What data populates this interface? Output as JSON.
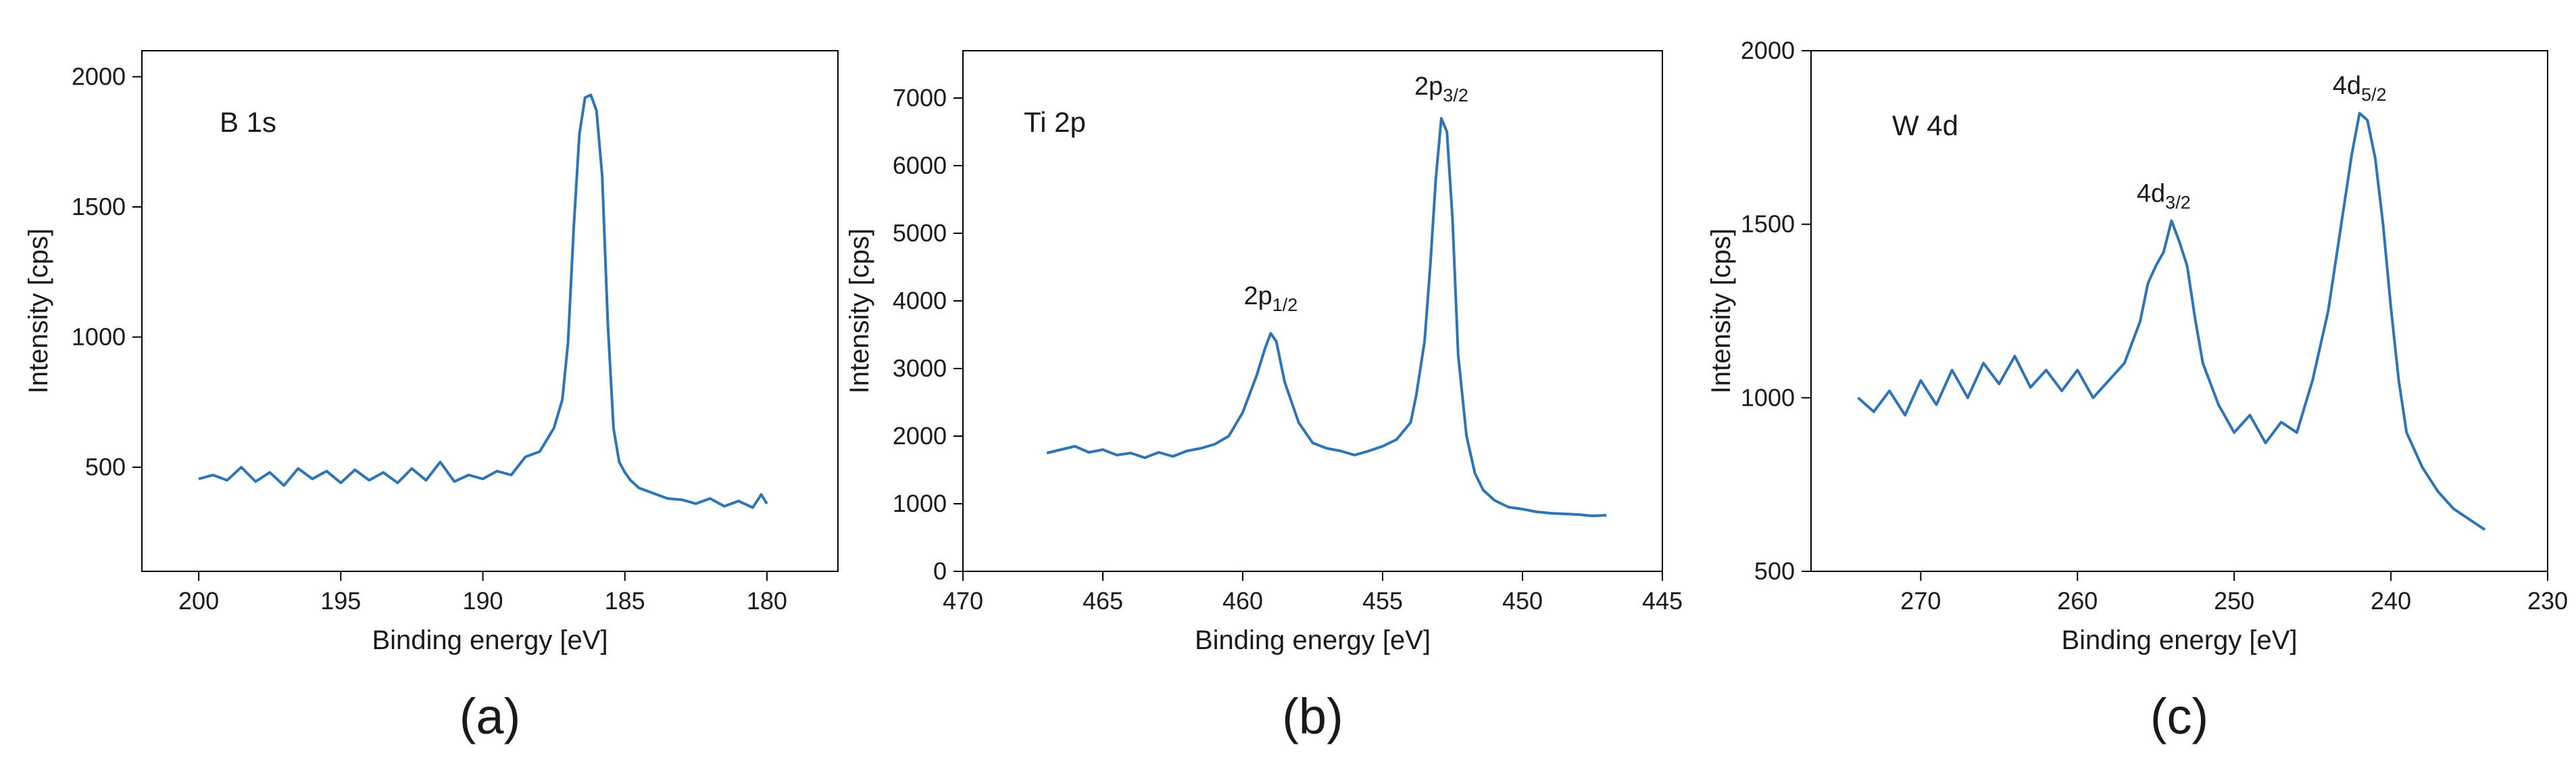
{
  "colors": {
    "line": "#2e75b6",
    "axis": "#000000",
    "text": "#1a1a1a"
  },
  "chart_data": [
    {
      "type": "line",
      "panel_label": "B 1s",
      "caption": "(a)",
      "xlabel": "Binding energy [eV]",
      "ylabel": "Intensity [cps]",
      "xlim": [
        202,
        177.5
      ],
      "ylim": [
        100,
        2100
      ],
      "x_ticks": [
        200,
        195,
        190,
        185,
        180
      ],
      "y_ticks": [
        500,
        1000,
        1500,
        2000
      ],
      "annotations": [],
      "series": [
        {
          "name": "B 1s",
          "x": [
            200.0,
            199.5,
            199.0,
            198.5,
            198.0,
            197.5,
            197.0,
            196.5,
            196.0,
            195.5,
            195.0,
            194.5,
            194.0,
            193.5,
            193.0,
            192.5,
            192.0,
            191.5,
            191.0,
            190.5,
            190.0,
            189.5,
            189.0,
            188.5,
            188.0,
            187.5,
            187.2,
            187.0,
            186.8,
            186.6,
            186.4,
            186.2,
            186.0,
            185.8,
            185.6,
            185.4,
            185.2,
            185.0,
            184.8,
            184.5,
            184.0,
            183.5,
            183.0,
            182.5,
            182.0,
            181.5,
            181.0,
            180.5,
            180.2,
            180.0
          ],
          "values": [
            455,
            470,
            450,
            500,
            445,
            480,
            430,
            495,
            455,
            485,
            440,
            490,
            450,
            480,
            440,
            495,
            450,
            520,
            445,
            470,
            455,
            485,
            470,
            540,
            560,
            650,
            760,
            980,
            1420,
            1780,
            1920,
            1930,
            1870,
            1620,
            1050,
            650,
            520,
            480,
            450,
            420,
            400,
            380,
            375,
            360,
            380,
            350,
            370,
            345,
            395,
            360
          ]
        }
      ]
    },
    {
      "type": "line",
      "panel_label": "Ti 2p",
      "caption": "(b)",
      "xlabel": "Binding energy [eV]",
      "ylabel": "Intensity [cps]",
      "xlim": [
        470,
        445
      ],
      "ylim": [
        0,
        7700
      ],
      "x_ticks": [
        470,
        465,
        460,
        455,
        450,
        445
      ],
      "y_ticks": [
        0,
        1000,
        2000,
        3000,
        4000,
        5000,
        6000,
        7000
      ],
      "annotations": [
        {
          "x": 459.0,
          "y": 3950,
          "main": "2p",
          "sub": "1/2"
        },
        {
          "x": 452.9,
          "y": 7050,
          "main": "2p",
          "sub": "3/2"
        }
      ],
      "series": [
        {
          "name": "Ti 2p",
          "x": [
            467.0,
            466.5,
            466.0,
            465.5,
            465.0,
            464.5,
            464.0,
            463.5,
            463.0,
            462.5,
            462.0,
            461.5,
            461.0,
            460.5,
            460.0,
            459.5,
            459.2,
            459.0,
            458.8,
            458.5,
            458.0,
            457.5,
            457.0,
            456.5,
            456.0,
            455.5,
            455.0,
            454.5,
            454.0,
            453.8,
            453.5,
            453.3,
            453.1,
            452.9,
            452.7,
            452.5,
            452.3,
            452.0,
            451.7,
            451.4,
            451.0,
            450.5,
            450.0,
            449.5,
            449.0,
            448.5,
            448.0,
            447.5,
            447.0
          ],
          "values": [
            1750,
            1800,
            1850,
            1760,
            1800,
            1720,
            1750,
            1680,
            1760,
            1700,
            1780,
            1820,
            1880,
            2000,
            2350,
            2900,
            3300,
            3520,
            3400,
            2800,
            2200,
            1900,
            1820,
            1780,
            1720,
            1780,
            1850,
            1950,
            2200,
            2600,
            3400,
            4500,
            5800,
            6700,
            6500,
            5200,
            3200,
            2000,
            1450,
            1200,
            1050,
            950,
            920,
            880,
            860,
            850,
            840,
            820,
            830
          ]
        }
      ]
    },
    {
      "type": "line",
      "panel_label": "W 4d",
      "caption": "(c)",
      "xlabel": "Binding energy [eV]",
      "ylabel": "Intensity [cps]",
      "xlim": [
        277,
        230
      ],
      "ylim": [
        500,
        2000
      ],
      "x_ticks": [
        270,
        260,
        250,
        240,
        230
      ],
      "y_ticks": [
        500,
        1000,
        1500,
        2000
      ],
      "annotations": [
        {
          "x": 254.5,
          "y": 1565,
          "main": "4d",
          "sub": "3/2"
        },
        {
          "x": 242.0,
          "y": 1875,
          "main": "4d",
          "sub": "5/2"
        }
      ],
      "series": [
        {
          "name": "W 4d",
          "x": [
            274.0,
            273.0,
            272.0,
            271.0,
            270.0,
            269.0,
            268.0,
            267.0,
            266.0,
            265.0,
            264.0,
            263.0,
            262.0,
            261.0,
            260.0,
            259.0,
            258.0,
            257.0,
            256.0,
            255.5,
            255.0,
            254.5,
            254.0,
            253.5,
            253.0,
            252.5,
            252.0,
            251.0,
            250.0,
            249.0,
            248.0,
            247.0,
            246.0,
            245.0,
            244.0,
            243.5,
            243.0,
            242.5,
            242.0,
            241.5,
            241.0,
            240.5,
            240.0,
            239.5,
            239.0,
            238.0,
            237.0,
            236.0,
            235.0,
            234.0
          ],
          "values": [
            1000,
            960,
            1020,
            950,
            1050,
            980,
            1080,
            1000,
            1100,
            1040,
            1120,
            1030,
            1080,
            1020,
            1080,
            1000,
            1050,
            1100,
            1220,
            1330,
            1380,
            1420,
            1510,
            1450,
            1380,
            1230,
            1100,
            980,
            900,
            950,
            870,
            930,
            900,
            1050,
            1250,
            1400,
            1550,
            1700,
            1820,
            1800,
            1690,
            1500,
            1260,
            1050,
            900,
            800,
            730,
            680,
            650,
            620
          ]
        }
      ]
    }
  ]
}
